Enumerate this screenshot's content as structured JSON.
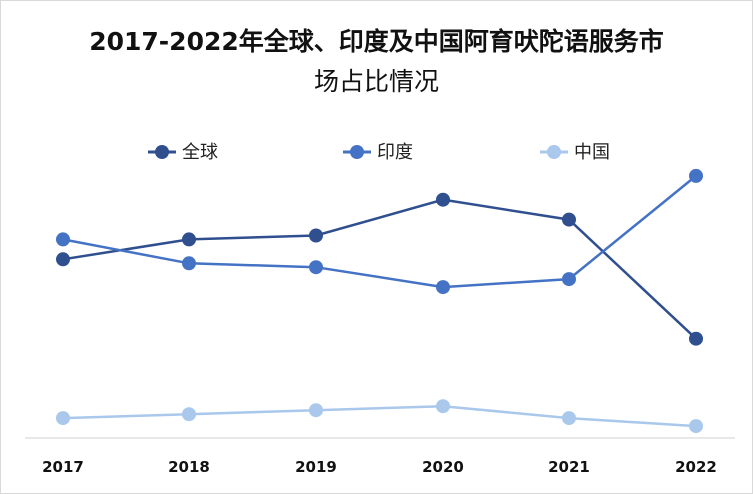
{
  "chart_data": {
    "type": "line",
    "title_line1": "2017-2022年全球、印度及中国阿育吠陀语服务市",
    "title_line2": "场占比情况",
    "categories": [
      "2017",
      "2018",
      "2019",
      "2020",
      "2021",
      "2022"
    ],
    "series": [
      {
        "name": "全球",
        "color": "#2f4f8f",
        "values": [
          45,
          50,
          51,
          60,
          55,
          25
        ]
      },
      {
        "name": "印度",
        "color": "#4472c4",
        "values": [
          50,
          44,
          43,
          38,
          40,
          66
        ]
      },
      {
        "name": "中国",
        "color": "#a9c8eb",
        "values": [
          5,
          6,
          7,
          8,
          5,
          3
        ]
      }
    ],
    "ylim": [
      0,
      70
    ],
    "grid": false,
    "legend_position": "top"
  }
}
